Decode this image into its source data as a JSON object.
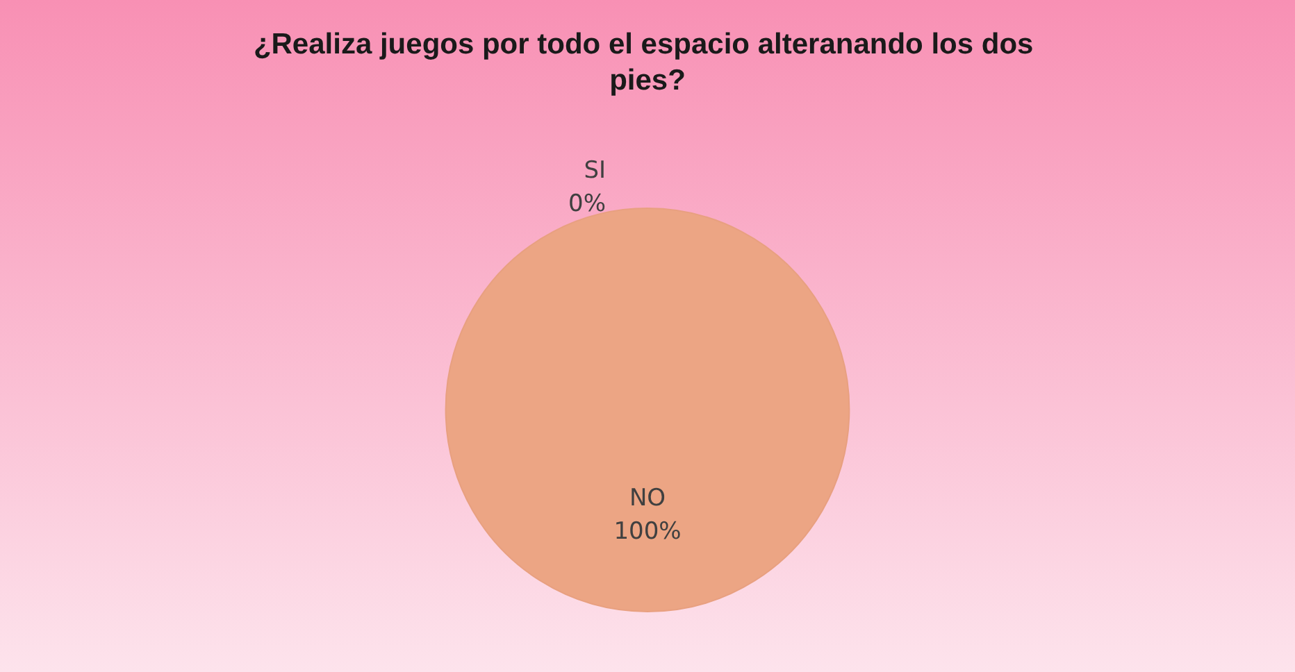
{
  "chart_data": {
    "type": "pie",
    "title": "¿Realiza juegos por todo el espacio alteranando los dos pies?",
    "categories": [
      "SI",
      "NO"
    ],
    "values": [
      0,
      100
    ],
    "value_labels": [
      "0%",
      "100%"
    ],
    "colors": [
      "#5b9bd5",
      "#eca584"
    ],
    "legend": false
  }
}
